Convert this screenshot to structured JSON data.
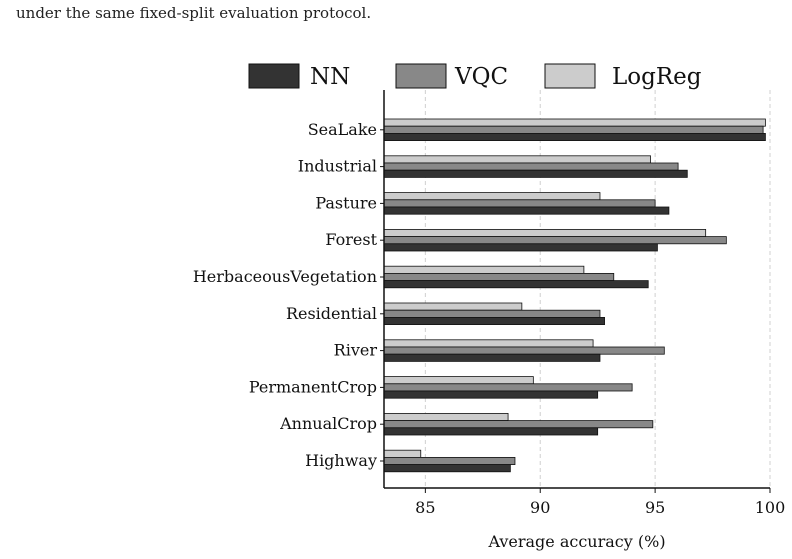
{
  "page": {
    "caption": "under the same fixed-split evaluation protocol."
  },
  "chart_data": {
    "type": "bar",
    "orientation": "horizontal",
    "categories": [
      "SeaLake",
      "Industrial",
      "Pasture",
      "Forest",
      "HerbaceousVegetation",
      "Residential",
      "River",
      "PermanentCrop",
      "AnnualCrop",
      "Highway"
    ],
    "series": [
      {
        "name": "NN",
        "color": "#333333",
        "values": [
          99.8,
          96.4,
          95.6,
          95.1,
          94.7,
          92.8,
          92.6,
          92.5,
          92.5,
          88.7
        ]
      },
      {
        "name": "VQC",
        "color": "#888888",
        "values": [
          99.7,
          96.0,
          95.0,
          98.1,
          93.2,
          92.6,
          95.4,
          94.0,
          94.9,
          88.9
        ]
      },
      {
        "name": "LogReg",
        "color": "#cccccc",
        "values": [
          99.8,
          94.8,
          92.6,
          97.2,
          91.9,
          89.2,
          92.3,
          89.7,
          88.6,
          84.8
        ]
      }
    ],
    "xlabel": "Average accuracy (%)",
    "ylabel": "",
    "xlim": [
      83.2,
      100
    ],
    "xticks": [
      85,
      90,
      95,
      100
    ],
    "grid": "vertical dashed",
    "legend": "top"
  }
}
